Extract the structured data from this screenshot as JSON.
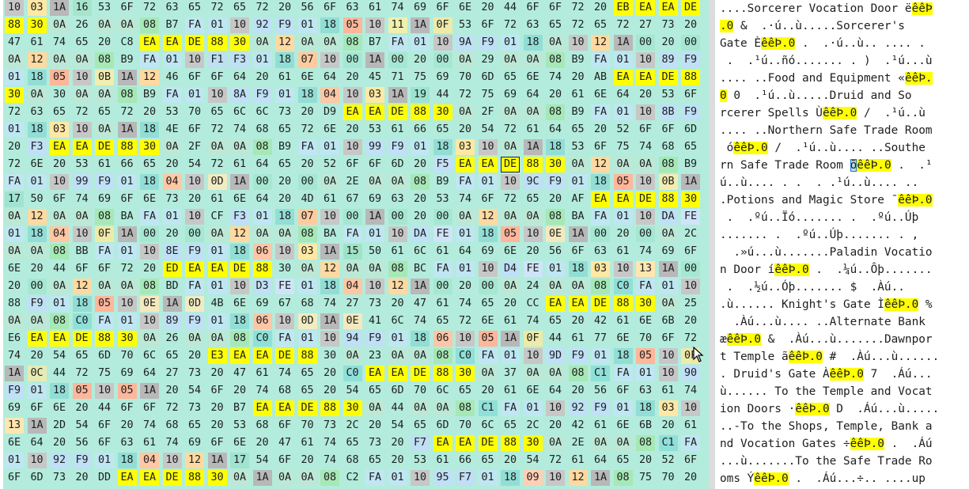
{
  "colors": {
    "hex_background": "#b3ecdc",
    "pattern_highlight": "#ffff00",
    "ascii_background": "#ffffff",
    "selection": "#b6dcf5",
    "byte_tints": {
      "00": "#a6e7d2",
      "01": "#bfe6f3",
      "03": "#ffe8a3",
      "04": "#ffc7a4",
      "05": "#ffb69a",
      "06": "#ffc5a6",
      "07": "#ffcb9e",
      "08": "#a6e8b6",
      "09": "#ffcfb6",
      "0A": "#bde8d6",
      "0B": "#f2ecb0",
      "0C": "#e7ebb3",
      "0D": "#f1ebc2",
      "0E": "#f4e9be",
      "0F": "#eeeaa8",
      "10": "#c7c7c7",
      "11": "#f0efad",
      "12": "#ffd9a0",
      "13": "#ffe6b0",
      "15": "#9fe3c7",
      "16": "#a6e5cb",
      "17": "#a0e3d0",
      "18": "#92ded6",
      "19": "#9ee3d1",
      "1A": "#b8b8b8",
      "20": "#b3ecdc",
      "C0": "#8fe0d9",
      "C1": "#8fe0d9",
      "F1": "#bfdff2",
      "F3": "#bfe0f6",
      "F5": "#c3e0f8",
      "F7": "#c0def4",
      "F9": "#bfe0f6",
      "FA": "#c0e6f3",
      "FE": "#cfe4f8",
      "8A": "#bfe0f6",
      "8B": "#bfe0f6",
      "8E": "#bfe0f6",
      "89": "#bfe0f6",
      "90": "#bfe0f6",
      "92": "#bfe0f6",
      "94": "#bfe0f6",
      "95": "#bfe0f6",
      "99": "#bfe0f6",
      "9A": "#bfe0f6",
      "9C": "#bfe0f6",
      "9D": "#bfe0f6",
      "D3": "#bfe0f6",
      "D4": "#bfe0f6",
      "DA": "#bfe0f6"
    }
  },
  "hex_view": {
    "cursor_row": 9,
    "cursor_col": 22,
    "rows": [
      "10 03 1A 16 53 6F 72 63 65 72 65 72 20 56 6F 63 61 74 69 6F 6E 20 44 6F 6F 72 20 EB EA EA DE",
      "88 30 0A 26 0A 0A 08 B7 FA 01 10 92 F9 01 18 05 10 11 1A 0F 53 6F 72 63 65 72 65 72 27 73 20",
      "47 61 74 65 20 C8 EA EA DE 88 30 0A 12 0A 0A 08 B7 FA 01 10 9A F9 01 18 0A 10 12 1A 00 20 00",
      "0A 12 0A 0A 08 B9 FA 01 10 F1 F3 01 18 07 10 00 1A 00 20 00 0A 29 0A 0A 08 B9 FA 01 10 89 F9",
      "01 18 05 10 0B 1A 12 46 6F 6F 64 20 61 6E 64 20 45 71 75 69 70 6D 65 6E 74 20 AB EA EA DE 88",
      "30 0A 30 0A 0A 08 B9 FA 01 10 8A F9 01 18 04 10 03 1A 19 44 72 75 69 64 20 61 6E 64 20 53 6F",
      "72 63 65 72 65 72 20 53 70 65 6C 6C 73 20 D9 EA EA DE 88 30 0A 2F 0A 0A 08 B9 FA 01 10 8B F9",
      "01 18 03 10 0A 1A 18 4E 6F 72 74 68 65 72 6E 20 53 61 66 65 20 54 72 61 64 65 20 52 6F 6F 6D",
      "20 F3 EA EA DE 88 30 0A 2F 0A 0A 08 B9 FA 01 10 99 F9 01 18 03 10 0A 1A 18 53 6F 75 74 68 65",
      "72 6E 20 53 61 66 65 20 54 72 61 64 65 20 52 6F 6F 6D 20 F5 EA EA DE 88 30 0A 12 0A 0A 08 B9",
      "FA 01 10 99 F9 01 18 04 10 0D 1A 00 20 00 0A 2E 0A 0A 08 B9 FA 01 10 9C F9 01 18 05 10 0B 1A",
      "17 50 6F 74 69 6F 6E 73 20 61 6E 64 20 4D 61 67 69 63 20 53 74 6F 72 65 20 AF EA EA DE 88 30",
      "0A 12 0A 0A 08 BA FA 01 10 CF F3 01 18 07 10 00 1A 00 20 00 0A 12 0A 0A 08 BA FA 01 10 DA FE",
      "01 18 04 10 0F 1A 00 20 00 0A 12 0A 0A 08 BA FA 01 10 DA FE 01 18 05 10 0E 1A 00 20 00 0A 2C",
      "0A 0A 08 BB FA 01 10 8E F9 01 18 06 10 03 1A 15 50 61 6C 61 64 69 6E 20 56 6F 63 61 74 69 6F",
      "6E 20 44 6F 6F 72 20 ED EA EA DE 88 30 0A 12 0A 0A 08 BC FA 01 10 D4 FE 01 18 03 10 13 1A 00",
      "20 00 0A 12 0A 0A 08 BD FA 01 10 D3 FE 01 18 04 10 12 1A 00 20 00 0A 24 0A 0A 08 C0 FA 01 10",
      "88 F9 01 18 05 10 0E 1A 0D 4B 6E 69 67 68 74 27 73 20 47 61 74 65 20 CC EA EA DE 88 30 0A 25",
      "0A 0A 08 C0 FA 01 10 89 F9 01 18 06 10 0D 1A 0E 41 6C 74 65 72 6E 61 74 65 20 42 61 6E 6B 20",
      "E6 EA EA DE 88 30 0A 26 0A 0A 08 C0 FA 01 10 94 F9 01 18 06 10 05 1A 0F 44 61 77 6E 70 6F 72",
      "74 20 54 65 6D 70 6C 65 20 E3 EA EA DE 88 30 0A 23 0A 0A 08 C0 FA 01 10 9D F9 01 18 05 10 0F",
      "1A 0C 44 72 75 69 64 27 73 20 47 61 74 65 20 C0 EA EA DE 88 30 0A 37 0A 0A 08 C1 FA 01 10 90",
      "F9 01 18 05 10 05 1A 20 54 6F 20 74 68 65 20 54 65 6D 70 6C 65 20 61 6E 64 20 56 6F 63 61 74",
      "69 6F 6E 20 44 6F 6F 72 73 20 B7 EA EA DE 88 30 0A 44 0A 0A 08 C1 FA 01 10 92 F9 01 18 03 10",
      "13 1A 2D 54 6F 20 74 68 65 20 53 68 6F 70 73 2C 20 54 65 6D 70 6C 65 2C 20 42 61 6E 6B 20 61",
      "6E 64 20 56 6F 63 61 74 69 6F 6E 20 47 61 74 65 73 20 F7 EA EA DE 88 30 0A 2E 0A 0A 08 C1 FA",
      "01 10 92 F9 01 18 04 10 12 1A 17 54 6F 20 74 68 65 20 53 61 66 65 20 54 72 61 64 65 20 52 6F",
      "6F 6D 73 20 DD EA EA DE 88 30 0A 1A 0A 0A 08 C2 FA 01 10 95 F7 01 18 09 10 12 1A 08 75 70 20"
    ],
    "highlight_runs": [
      [
        0,
        27,
        4
      ],
      [
        1,
        0,
        2
      ],
      [
        2,
        6,
        5
      ],
      [
        4,
        27,
        4
      ],
      [
        5,
        0,
        1
      ],
      [
        6,
        15,
        5
      ],
      [
        8,
        2,
        5
      ],
      [
        9,
        20,
        5
      ],
      [
        11,
        26,
        5
      ],
      [
        15,
        7,
        5
      ],
      [
        17,
        24,
        5
      ],
      [
        19,
        1,
        5
      ],
      [
        20,
        9,
        5
      ],
      [
        21,
        16,
        5
      ],
      [
        23,
        11,
        5
      ],
      [
        25,
        19,
        5
      ],
      [
        27,
        5,
        5
      ]
    ]
  },
  "ascii_view": {
    "rows": [
      [
        [
          "....Sorcerer Vocation Door ë",
          ""
        ],
        [
          "êêÞ",
          "hl"
        ]
      ],
      [
        [
          ".0",
          "hl"
        ],
        [
          " &  .·ú..ù.....Sorcerer's",
          ""
        ]
      ],
      [
        [
          "Gate È",
          ""
        ],
        [
          "êêÞ.0",
          "hl"
        ],
        [
          " .  .·ú..ù.. .... .",
          ""
        ]
      ],
      [
        [
          " .  .¹ú..ñó....... . )  .¹ú...ù",
          ""
        ]
      ],
      [
        [
          ".... ..Food and Equipment «",
          ""
        ],
        [
          "êêÞ.",
          "hl"
        ]
      ],
      [
        [
          "0",
          "hl"
        ],
        [
          " 0  .¹ú..ù.....Druid and So",
          ""
        ]
      ],
      [
        [
          "rcerer Spells Ù",
          ""
        ],
        [
          "êêÞ.0",
          "hl"
        ],
        [
          " /  .¹ú..ù",
          ""
        ]
      ],
      [
        [
          ".... ..Northern Safe Trade Room",
          ""
        ]
      ],
      [
        [
          " ó",
          ""
        ],
        [
          "êêÞ.0",
          "hl"
        ],
        [
          " /  .¹ú..ù.... ..Southe",
          ""
        ]
      ],
      [
        [
          "rn Safe Trade Room ",
          ""
        ],
        [
          "õ",
          "sel"
        ],
        [
          "êêÞ.0",
          "hl"
        ],
        [
          " .  .¹",
          ""
        ]
      ],
      [
        [
          "ú..ù.... . .  . .¹ú..ù.... ..",
          ""
        ]
      ],
      [
        [
          ".Potions and Magic Store ¯",
          ""
        ],
        [
          "êêÞ.0",
          "hl"
        ]
      ],
      [
        [
          " .  .ºú..Ïó....... .  .ºú..Úþ",
          ""
        ]
      ],
      [
        [
          "....... .  .ºú..Úþ....... . ,",
          ""
        ]
      ],
      [
        [
          "  .»ú...ù.......Paladin Vocatio",
          ""
        ]
      ],
      [
        [
          "n Door í",
          ""
        ],
        [
          "êêÞ.0",
          "hl"
        ],
        [
          " .  .¼ú..Ôþ.......",
          ""
        ]
      ],
      [
        [
          " .  .½ú..Óþ....... $  .Àú..",
          ""
        ]
      ],
      [
        [
          ".ù...... Knight's Gate Ì",
          ""
        ],
        [
          "êêÞ.0",
          "hl"
        ],
        [
          " %",
          ""
        ]
      ],
      [
        [
          "  .Àú...ù.... ..Alternate Bank",
          ""
        ]
      ],
      [
        [
          "æ",
          ""
        ],
        [
          "êêÞ.0",
          "hl"
        ],
        [
          " &  .Àú...ù.......Dawnpor",
          ""
        ]
      ],
      [
        [
          "t Temple ã",
          ""
        ],
        [
          "êêÞ.0",
          "hl"
        ],
        [
          " #  .Àú...ù......",
          ""
        ]
      ],
      [
        [
          ". Druid's Gate À",
          ""
        ],
        [
          "êêÞ.0",
          "hl"
        ],
        [
          " 7  .Áú...",
          ""
        ]
      ],
      [
        [
          "ù...... To the Temple and Vocat",
          ""
        ]
      ],
      [
        [
          "ion Doors ·",
          ""
        ],
        [
          "êêÞ.0",
          "hl"
        ],
        [
          " D  .Áú...ù.....",
          ""
        ]
      ],
      [
        [
          "..-To the Shops, Temple, Bank a",
          ""
        ]
      ],
      [
        [
          "nd Vocation Gates ÷",
          ""
        ],
        [
          "êêÞ.0",
          "hl"
        ],
        [
          " .  .Áú",
          ""
        ]
      ],
      [
        [
          "...ù.......To the Safe Trade Ro",
          ""
        ]
      ],
      [
        [
          "oms Ý",
          ""
        ],
        [
          "êêÞ.0",
          "hl"
        ],
        [
          " .  .Áú...÷.. ....up",
          ""
        ]
      ]
    ]
  }
}
